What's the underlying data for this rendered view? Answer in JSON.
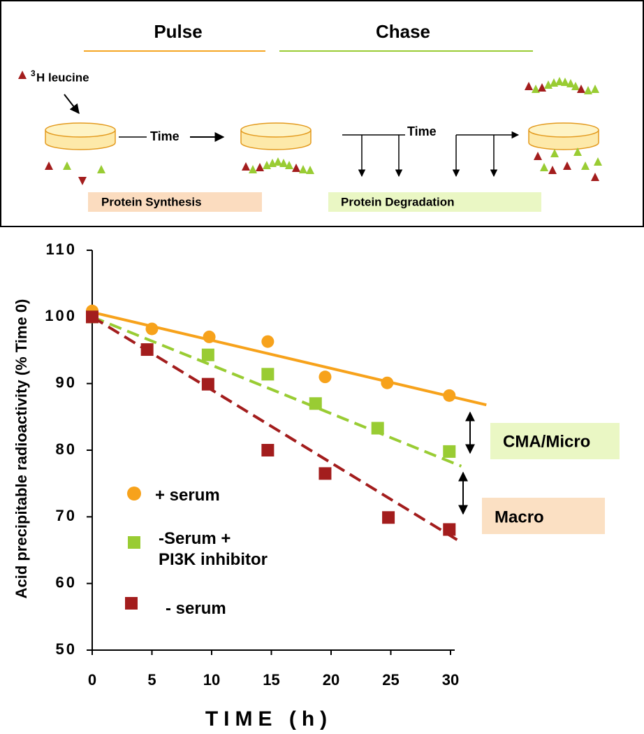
{
  "diagram": {
    "pulse": "Pulse",
    "chase": "Chase",
    "tracer": {
      "superscript": "3",
      "text": "H leucine"
    },
    "time_labels": [
      "Time",
      "Time"
    ],
    "boxes": [
      "Protein Synthesis",
      "Protein Degradation"
    ]
  },
  "chart_data": {
    "type": "scatter",
    "y_label": "Acid precipitable radioactivity (% Time 0)",
    "x_label": "TIME (h)",
    "xlim": [
      0,
      30
    ],
    "xticks": [
      0,
      5,
      10,
      15,
      20,
      25,
      30
    ],
    "ylim": [
      50,
      110
    ],
    "yticks": [
      50,
      60,
      70,
      80,
      90,
      100,
      110
    ],
    "series": [
      {
        "name": "+ serum",
        "color": "#f7a21b",
        "marker": "circle",
        "x": [
          0,
          5,
          9.8,
          14.7,
          19.5,
          24.7,
          29.9
        ],
        "values": [
          100.9,
          98.2,
          97.0,
          96.3,
          91.0,
          90.1,
          88.2
        ],
        "trend": {
          "x": [
            0,
            33
          ],
          "values": [
            100.7,
            86.8
          ],
          "dashed": false
        }
      },
      {
        "name": "-Serum +\nPI3K inhibitor",
        "color": "#99cc33",
        "marker": "square",
        "x": [
          0,
          9.7,
          14.7,
          18.7,
          23.9,
          29.9
        ],
        "values": [
          100,
          94.3,
          91.4,
          87.0,
          83.3,
          79.8
        ],
        "trend": {
          "x": [
            0,
            30.9
          ],
          "values": [
            100,
            77.6
          ],
          "dashed": true
        }
      },
      {
        "name": "- serum",
        "color": "#a31d1d",
        "marker": "square",
        "x": [
          0,
          4.6,
          9.7,
          14.7,
          19.5,
          24.8,
          29.9
        ],
        "values": [
          100,
          95.1,
          89.9,
          80.0,
          76.5,
          69.9,
          68.1
        ],
        "trend": {
          "x": [
            0,
            30.6
          ],
          "values": [
            100,
            66.5
          ],
          "dashed": true
        }
      }
    ],
    "annotations": [
      "CMA/Micro",
      "Macro"
    ]
  }
}
